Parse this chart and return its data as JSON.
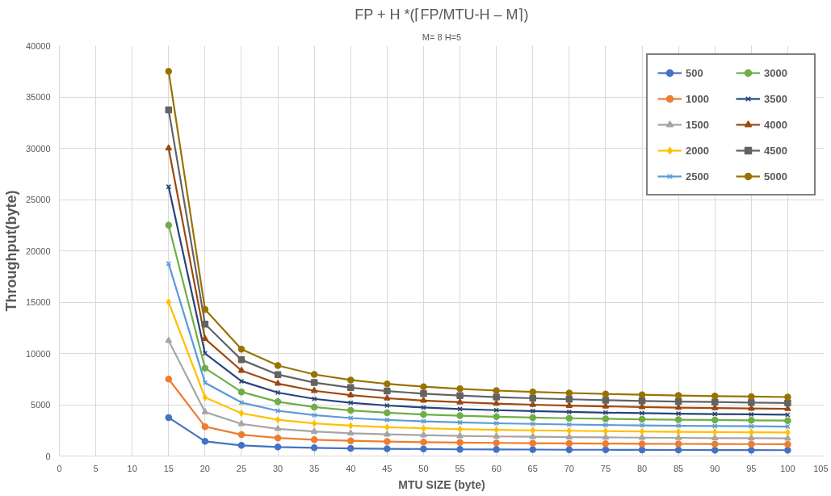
{
  "chart_data": {
    "type": "line",
    "title": "FP + H *(⌈FP/MTU-H – M⌉)",
    "subtitle": "M= 8 H=5",
    "xlabel": "MTU SIZE (byte)",
    "ylabel": "Throughput(byte)",
    "x": [
      15,
      20,
      25,
      30,
      35,
      40,
      45,
      50,
      55,
      60,
      65,
      70,
      75,
      80,
      85,
      90,
      95,
      100
    ],
    "xlim": [
      0,
      105
    ],
    "xticks": [
      0,
      5,
      10,
      15,
      20,
      25,
      30,
      35,
      40,
      45,
      50,
      55,
      60,
      65,
      70,
      75,
      80,
      85,
      90,
      95,
      100,
      105
    ],
    "ylim": [
      0,
      40000
    ],
    "yticks": [
      0,
      5000,
      10000,
      15000,
      20000,
      25000,
      30000,
      35000,
      40000
    ],
    "grid": true,
    "legend": "top right",
    "series": [
      {
        "name": "500",
        "color": "#4472c4",
        "marker": "circle",
        "values": [
          3750,
          1430,
          1040,
          880,
          800,
          740,
          700,
          680,
          650,
          640,
          630,
          610,
          610,
          600,
          590,
          580,
          580,
          570
        ]
      },
      {
        "name": "1000",
        "color": "#ed7d31",
        "marker": "circle",
        "values": [
          7500,
          2860,
          2080,
          1760,
          1590,
          1480,
          1410,
          1350,
          1310,
          1280,
          1250,
          1230,
          1210,
          1190,
          1180,
          1170,
          1160,
          1150
        ]
      },
      {
        "name": "1500",
        "color": "#a5a5a5",
        "marker": "triangle",
        "values": [
          11250,
          4290,
          3130,
          2650,
          2390,
          2220,
          2110,
          2030,
          1960,
          1910,
          1880,
          1840,
          1820,
          1790,
          1770,
          1750,
          1740,
          1720
        ]
      },
      {
        "name": "2000",
        "color": "#ffc000",
        "marker": "diamond",
        "values": [
          15000,
          5710,
          4170,
          3530,
          3180,
          2960,
          2810,
          2700,
          2620,
          2550,
          2500,
          2460,
          2420,
          2390,
          2360,
          2340,
          2320,
          2300
        ]
      },
      {
        "name": "2500",
        "color": "#5b9bd5",
        "marker": "cross",
        "values": [
          18750,
          7140,
          5210,
          4410,
          3980,
          3700,
          3520,
          3380,
          3270,
          3190,
          3130,
          3070,
          3020,
          2990,
          2950,
          2920,
          2900,
          2870
        ]
      },
      {
        "name": "3000",
        "color": "#70ad47",
        "marker": "circle",
        "values": [
          22500,
          8570,
          6250,
          5290,
          4770,
          4440,
          4220,
          4050,
          3930,
          3830,
          3750,
          3680,
          3630,
          3580,
          3540,
          3510,
          3480,
          3450
        ]
      },
      {
        "name": "3500",
        "color": "#264478",
        "marker": "cross",
        "values": [
          26250,
          10000,
          7290,
          6180,
          5570,
          5190,
          4920,
          4730,
          4580,
          4470,
          4380,
          4300,
          4230,
          4180,
          4130,
          4090,
          4060,
          4020
        ]
      },
      {
        "name": "4000",
        "color": "#9e480e",
        "marker": "triangle",
        "values": [
          30000,
          11430,
          8330,
          7060,
          6360,
          5930,
          5630,
          5410,
          5240,
          5110,
          5000,
          4910,
          4840,
          4780,
          4720,
          4680,
          4630,
          4600
        ]
      },
      {
        "name": "4500",
        "color": "#636363",
        "marker": "square",
        "values": [
          33750,
          12860,
          9380,
          7940,
          7160,
          6670,
          6330,
          6080,
          5890,
          5740,
          5630,
          5530,
          5440,
          5370,
          5310,
          5260,
          5210,
          5170
        ]
      },
      {
        "name": "5000",
        "color": "#997300",
        "marker": "circle",
        "values": [
          37500,
          14290,
          10420,
          8820,
          7950,
          7410,
          7030,
          6760,
          6550,
          6380,
          6250,
          6140,
          6050,
          5970,
          5900,
          5840,
          5790,
          5750
        ]
      }
    ]
  }
}
